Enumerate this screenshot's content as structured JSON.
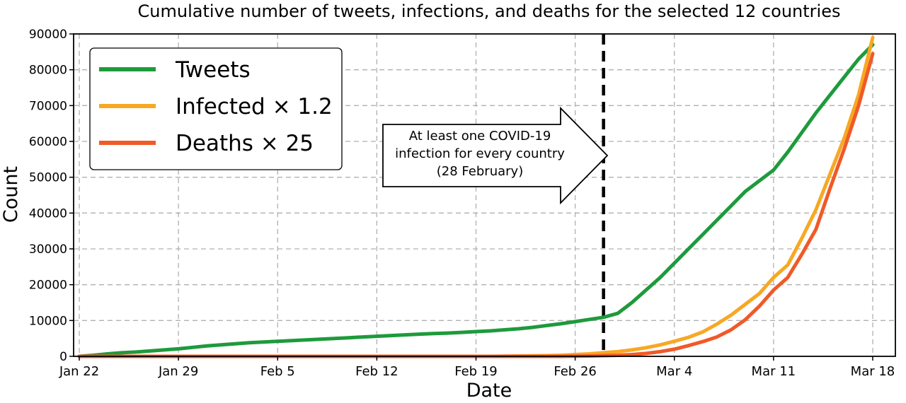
{
  "chart_data": {
    "type": "line",
    "title": "Cumulative number of tweets, infections, and deaths for the selected 12 countries",
    "xlabel": "Date",
    "ylabel": "Count",
    "x": [
      "Jan 22",
      "Jan 23",
      "Jan 24",
      "Jan 25",
      "Jan 26",
      "Jan 27",
      "Jan 28",
      "Jan 29",
      "Jan 30",
      "Jan 31",
      "Feb 1",
      "Feb 2",
      "Feb 3",
      "Feb 4",
      "Feb 5",
      "Feb 6",
      "Feb 7",
      "Feb 8",
      "Feb 9",
      "Feb 10",
      "Feb 11",
      "Feb 12",
      "Feb 13",
      "Feb 14",
      "Feb 15",
      "Feb 16",
      "Feb 17",
      "Feb 18",
      "Feb 19",
      "Feb 20",
      "Feb 21",
      "Feb 22",
      "Feb 23",
      "Feb 24",
      "Feb 25",
      "Feb 26",
      "Feb 27",
      "Feb 28",
      "Feb 29",
      "Mar 1",
      "Mar 2",
      "Mar 3",
      "Mar 4",
      "Mar 5",
      "Mar 6",
      "Mar 7",
      "Mar 8",
      "Mar 9",
      "Mar 10",
      "Mar 11",
      "Mar 12",
      "Mar 13",
      "Mar 14",
      "Mar 15",
      "Mar 16",
      "Mar 17",
      "Mar 18"
    ],
    "x_ticks": [
      "Jan 22",
      "Jan 29",
      "Feb 5",
      "Feb 12",
      "Feb 19",
      "Feb 26",
      "Mar 4",
      "Mar 11",
      "Mar 18"
    ],
    "x_tick_index": [
      0,
      7,
      14,
      21,
      28,
      35,
      42,
      49,
      56
    ],
    "ylim": [
      0,
      90000
    ],
    "y_ticks": [
      0,
      10000,
      20000,
      30000,
      40000,
      50000,
      60000,
      70000,
      80000,
      90000
    ],
    "xlim_index": [
      -0.4,
      57.6
    ],
    "grid": true,
    "legend_position": "top-left",
    "series": [
      {
        "name": "Tweets",
        "color": "#1e9a3c",
        "values": [
          0,
          300,
          700,
          1000,
          1200,
          1500,
          1800,
          2100,
          2500,
          2900,
          3200,
          3500,
          3800,
          4000,
          4200,
          4400,
          4600,
          4800,
          5000,
          5200,
          5400,
          5600,
          5800,
          6000,
          6200,
          6350,
          6500,
          6700,
          6900,
          7100,
          7400,
          7700,
          8100,
          8600,
          9100,
          9700,
          10300,
          10900,
          12000,
          15000,
          18500,
          22000,
          26000,
          30000,
          34000,
          38000,
          42000,
          46000,
          49000,
          52000,
          57000,
          62500,
          68000,
          73000,
          78000,
          83000,
          87000
        ]
      },
      {
        "name": "Infected × 1.2",
        "color": "#f7a823",
        "values": [
          0,
          0,
          0,
          0,
          0,
          0,
          0,
          0,
          0,
          0,
          0,
          0,
          0,
          0,
          0,
          0,
          0,
          0,
          0,
          0,
          0,
          0,
          0,
          0,
          0,
          0,
          0,
          0,
          0,
          0,
          50,
          100,
          150,
          200,
          300,
          500,
          700,
          1000,
          1300,
          1800,
          2400,
          3200,
          4200,
          5300,
          6800,
          9000,
          11500,
          14500,
          17500,
          22000,
          25500,
          33000,
          41000,
          51000,
          61000,
          73000,
          89000
        ]
      },
      {
        "name": "Deaths × 25",
        "color": "#f05a28",
        "values": [
          0,
          0,
          0,
          0,
          0,
          0,
          0,
          0,
          0,
          0,
          0,
          0,
          0,
          0,
          0,
          0,
          0,
          0,
          0,
          0,
          0,
          0,
          0,
          0,
          0,
          0,
          0,
          0,
          0,
          0,
          0,
          0,
          0,
          0,
          0,
          50,
          100,
          200,
          300,
          500,
          800,
          1300,
          2000,
          3000,
          4100,
          5400,
          7400,
          10200,
          14000,
          18500,
          22000,
          28500,
          35500,
          47000,
          58000,
          70000,
          84500
        ]
      }
    ],
    "annotations": [
      {
        "text_lines": [
          "At least one COVID-19",
          "infection for every country",
          "(28 February)"
        ],
        "vline_x": "Feb 28",
        "vline_index": 37
      }
    ]
  }
}
